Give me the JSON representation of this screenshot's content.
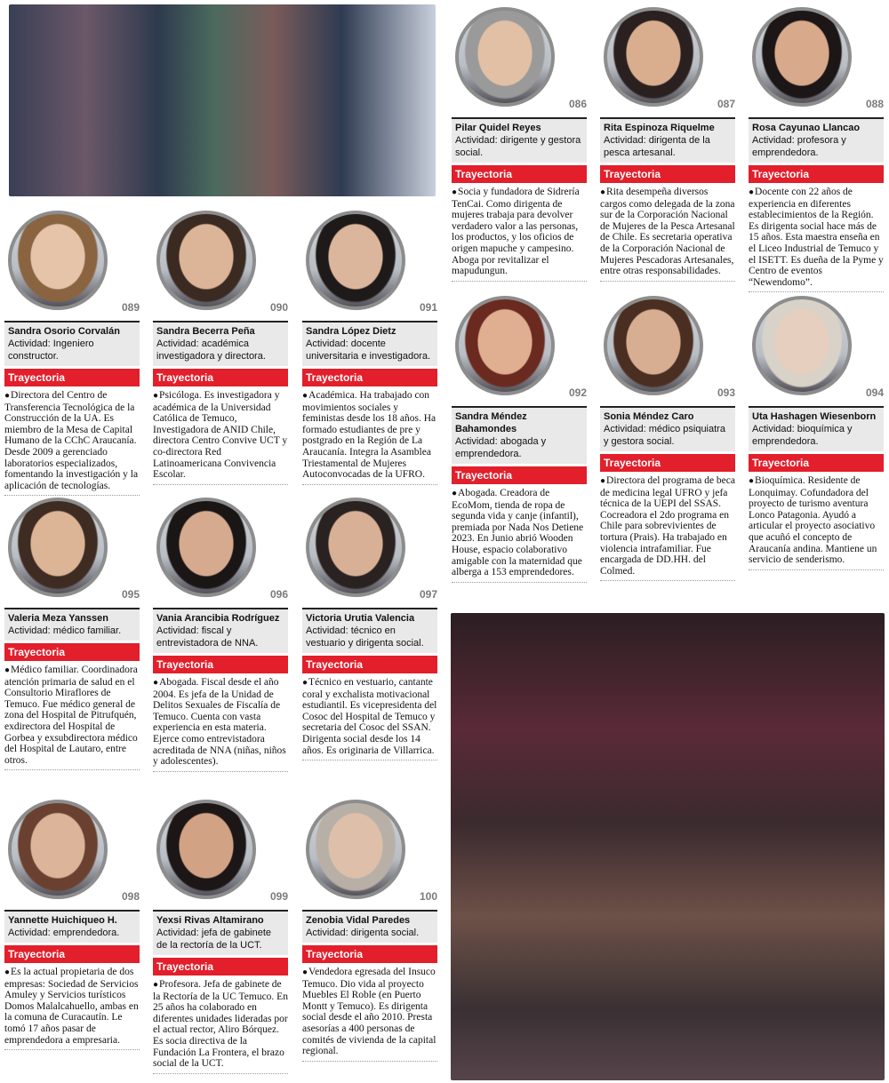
{
  "section_label": "Trayectoria",
  "profiles": [
    {
      "number": "086",
      "name": "Pilar Quidel Reyes",
      "activity": "Actividad: dirigente y gestora social.",
      "bio": "Socia y fundadora de Sidrería TenCai. Como dirigenta de mujeres trabaja para devolver verdadero valor a las personas, los productos, y los oficios de origen mapuche y campesino. Aboga por revitalizar el mapudungun."
    },
    {
      "number": "087",
      "name": "Rita Espinoza Riquelme",
      "activity": "Actividad: dirigenta de la pesca artesanal.",
      "bio": "Rita desempeña diversos cargos como delegada de la zona sur de la Corporación Nacional de Mujeres de la Pesca Artesanal de Chile. Es secretaria operativa de la Corporación Nacional de Mujeres Pescadoras Artesanales, entre otras responsabilidades."
    },
    {
      "number": "088",
      "name": "Rosa Cayunao Llancao",
      "activity": "Actividad: profesora y emprendedora.",
      "bio": "Docente con 22 años de experiencia en diferentes establecimientos de la Región. Es dirigenta social hace más de 15 años. Esta maestra enseña en el Liceo Industrial de Temuco y el ISETT. Es dueña de la Pyme y Centro de eventos “Newendomo”."
    },
    {
      "number": "089",
      "name": "Sandra Osorio Corvalán",
      "activity": "Actividad: Ingeniero constructor.",
      "bio": "Directora del Centro de Transferencia Tecnológica de la Construcción de la UA. Es miembro de la Mesa de Capital Humano de la CChC Araucanía. Desde 2009 a gerenciado laboratorios especializados, fomentando la investigación y la aplicación de tecnologías."
    },
    {
      "number": "090",
      "name": "Sandra Becerra Peña",
      "activity": "Actividad: académica investigadora y directora.",
      "bio": "Psicóloga. Es investigadora y académica de la Universidad Católica de Temuco, Investigadora de ANID Chile, directora Centro Convive UCT y co-directora Red Latinoamericana Convivencia Escolar."
    },
    {
      "number": "091",
      "name": "Sandra López Dietz",
      "activity": "Actividad: docente universitaria e investigadora.",
      "bio": "Académica. Ha trabajado con movimientos sociales y feministas desde los 18 años. Ha formado estudiantes de pre y postgrado en la Región de La Araucanía. Integra la Asamblea Triestamental de Mujeres Autoconvocadas de la UFRO."
    },
    {
      "number": "092",
      "name": "Sandra Méndez Bahamondes",
      "activity": "Actividad: abogada y emprendedora.",
      "bio": "Abogada. Creadora de EcoMom, tienda de ropa de segunda vida y canje (infantil), premiada por Nada Nos Detiene 2023. En Junio abrió Wooden House, espacio colaborativo amigable con la maternidad que alberga a 153 emprendedores."
    },
    {
      "number": "093",
      "name": "Sonia Méndez Caro",
      "activity": "Actividad: médico psiquiatra y gestora social.",
      "bio": "Directora del programa de beca de medicina legal UFRO y jefa técnica de la UEPI del SSAS. Cocreadora el 2do programa en Chile para sobrevivientes de tortura (Prais). Ha trabajado en violencia intrafamiliar. Fue encargada de DD.HH. del Colmed."
    },
    {
      "number": "094",
      "name": "Uta Hashagen Wiesenborn",
      "activity": "Actividad: bioquímica y emprendedora.",
      "bio": "Bioquímica. Residente de Lonquimay. Cofundadora del proyecto de turismo aventura Lonco Patagonia. Ayudó a articular el proyecto asociativo que acuñó el concepto de Araucanía andina. Mantiene un servicio de senderismo."
    },
    {
      "number": "095",
      "name": "Valeria Meza Yanssen",
      "activity": "Actividad: médico familiar.",
      "bio": "Médico familiar. Coordinadora atención primaria de salud en el Consultorio Miraflores de Temuco. Fue médico general de zona del Hospital de Pitrufquén, exdirectora del Hospital de Gorbea y exsubdirectora médico del Hospital de Lautaro, entre otros."
    },
    {
      "number": "096",
      "name": "Vania Arancibia Rodríguez",
      "activity": "Actividad: fiscal y entrevistadora de NNA.",
      "bio": "Abogada. Fiscal desde el año 2004. Es jefa de la Unidad de Delitos Sexuales de Fiscalía de Temuco. Cuenta con vasta experiencia en esta materia. Ejerce como entrevistadora acreditada de NNA (niñas, niños y adolescentes)."
    },
    {
      "number": "097",
      "name": "Victoria Urutia Valencia",
      "activity": "Actividad: técnico en vestuario y dirigenta social.",
      "bio": "Técnico en vestuario, cantante coral y exchalista motivacional estudiantil. Es vicepresidenta del Cosoc del Hospital de Temuco y secretaria del Cosoc del SSAN. Dirigenta social desde los 14 años. Es originaria de Villarrica."
    },
    {
      "number": "098",
      "name": "Yannette Huichiqueo H.",
      "activity": "Actividad: emprendedora.",
      "bio": "Es la actual propietaria de dos empresas: Sociedad de Servicios Amuley y Servicios turísticos Domos Malalcahuello, ambas en la comuna de Curacautín. Le tomó 17 años pasar de emprendedora a empresaria."
    },
    {
      "number": "099",
      "name": "Yexsi Rivas Altamirano",
      "activity": "Actividad: jefa de gabinete de la rectoría de la UCT.",
      "bio": "Profesora. Jefa de gabinete de la Rectoría de la UC Temuco. En 25 años ha colaborado en diferentes unidades lideradas por el actual rector, Aliro Bórquez. Es socia directiva de la Fundación La Frontera, el brazo social de la UCT."
    },
    {
      "number": "100",
      "name": "Zenobia Vidal Paredes",
      "activity": "Actividad: dirigenta social.",
      "bio": "Vendedora egresada del Insuco Temuco. Dio vida al proyecto Muebles El Roble (en Puerto Montt y Temuco). Es dirigenta social desde el año 2010. Presta asesorías a 400 personas de comités de vivienda de la capital regional."
    }
  ]
}
